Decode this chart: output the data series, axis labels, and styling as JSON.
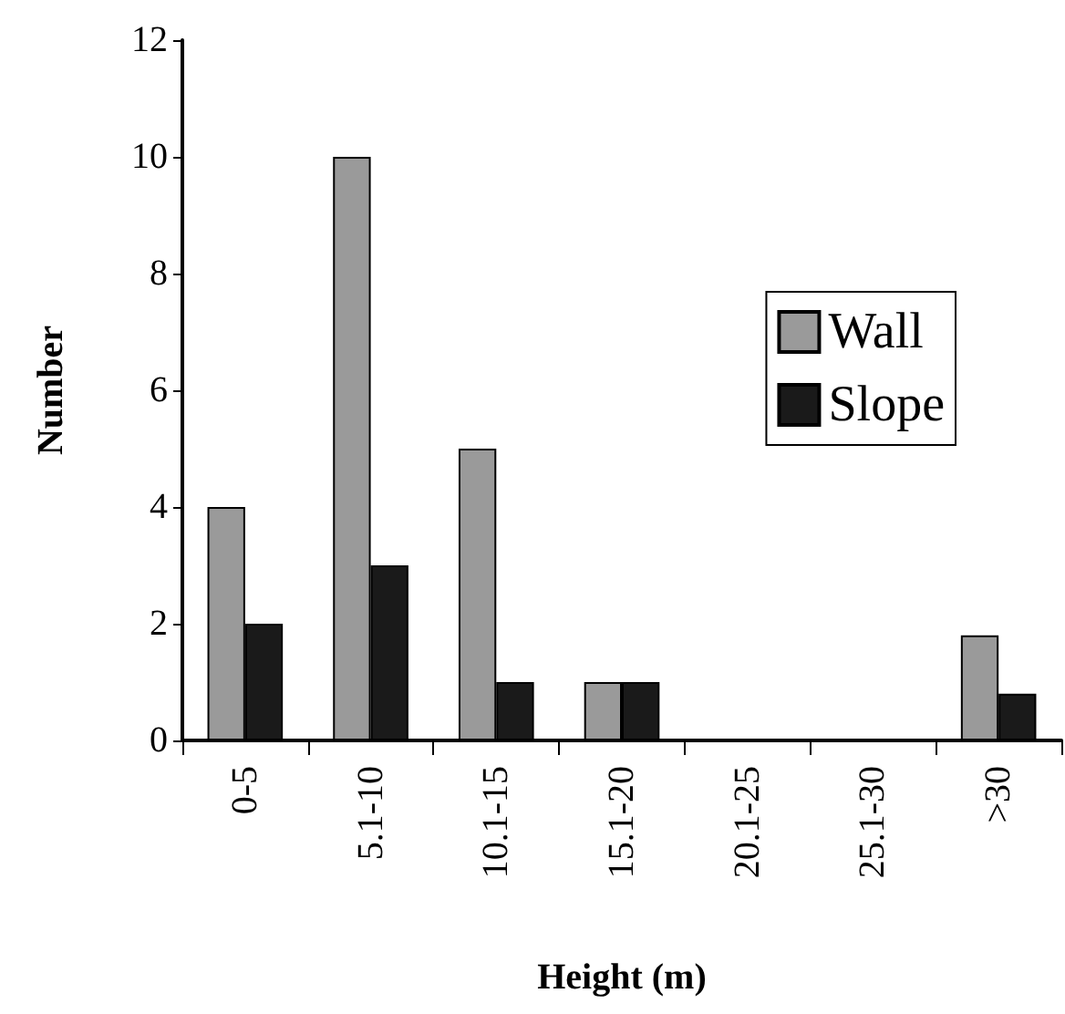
{
  "chart_data": {
    "type": "bar",
    "xlabel": "Height (m)",
    "ylabel": "Number",
    "categories": [
      "0-5",
      "5.1-10",
      "10.1-15",
      "15.1-20",
      "20.1-25",
      "25.1-30",
      ">30"
    ],
    "series": [
      {
        "name": "Wall",
        "color": "#9a9a9a",
        "values": [
          4,
          10,
          5,
          1,
          0,
          0,
          1.8
        ]
      },
      {
        "name": "Slope",
        "color": "#1a1a1a",
        "values": [
          2,
          3,
          1,
          1,
          0,
          0,
          0.8
        ]
      }
    ],
    "ylim": [
      0,
      12
    ],
    "yticks": [
      0,
      2,
      4,
      6,
      8,
      10,
      12
    ],
    "grid": false,
    "legend": "right"
  }
}
